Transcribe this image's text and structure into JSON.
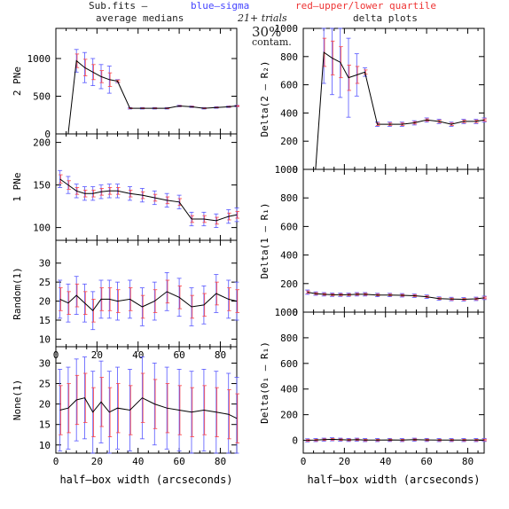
{
  "header": {
    "line1": {
      "prefix": "Sub.fits  –",
      "blue": "blue–sigma",
      "red": "red–upper/lower quartile"
    },
    "left_title": "average medians",
    "right_title": "delta plots",
    "trials": "21+ trials",
    "contam_pct": "30%",
    "contam": "contam."
  },
  "colors": {
    "median_line": "#000000",
    "sigma_bar": "#5555ff",
    "quartile_bar": "#ff4444",
    "axis": "#000000",
    "blue_text": "#4444ff",
    "red_text": "#ee3333"
  },
  "chart_data": [
    {
      "type": "line",
      "panel": "left-1",
      "ylabel": "2 PNe",
      "xlabel": "",
      "xlim": [
        0,
        88
      ],
      "ylim": [
        0,
        1400
      ],
      "xticks": [
        "0",
        "20",
        "40",
        "60",
        "80"
      ],
      "yticks": [
        "0",
        "500",
        "1000"
      ],
      "x": [
        2,
        6,
        10,
        14,
        18,
        22,
        26,
        30,
        36,
        42,
        48,
        54,
        60,
        66,
        72,
        78,
        84,
        88
      ],
      "values": [
        0,
        0,
        970,
        880,
        820,
        760,
        720,
        700,
        340,
        340,
        340,
        340,
        370,
        360,
        340,
        350,
        360,
        370
      ],
      "sigma": [
        0,
        0,
        150,
        200,
        180,
        160,
        180,
        20,
        10,
        10,
        10,
        10,
        10,
        10,
        10,
        10,
        10,
        10
      ],
      "quartile": [
        0,
        0,
        90,
        110,
        100,
        80,
        90,
        15,
        5,
        5,
        5,
        5,
        5,
        5,
        5,
        5,
        5,
        5
      ]
    },
    {
      "type": "line",
      "panel": "left-2",
      "ylabel": "1 PNe",
      "xlabel": "",
      "xlim": [
        0,
        88
      ],
      "ylim": [
        85,
        210
      ],
      "xticks": [
        "0",
        "20",
        "40",
        "60",
        "80"
      ],
      "yticks": [
        "100",
        "150",
        "200"
      ],
      "x": [
        2,
        6,
        10,
        14,
        18,
        22,
        26,
        30,
        36,
        42,
        48,
        54,
        60,
        66,
        72,
        78,
        84,
        88
      ],
      "values": [
        157,
        150,
        143,
        140,
        140,
        142,
        143,
        143,
        140,
        138,
        135,
        132,
        130,
        110,
        110,
        108,
        113,
        115
      ],
      "sigma": [
        10,
        10,
        8,
        8,
        8,
        8,
        8,
        8,
        8,
        8,
        8,
        8,
        8,
        8,
        8,
        8,
        8,
        8
      ],
      "quartile": [
        5,
        5,
        4,
        4,
        4,
        4,
        4,
        4,
        4,
        4,
        4,
        4,
        4,
        4,
        4,
        4,
        4,
        4
      ]
    },
    {
      "type": "line",
      "panel": "left-3",
      "ylabel": "Random(1)",
      "xlabel": "",
      "xlim": [
        0,
        88
      ],
      "ylim": [
        8,
        36
      ],
      "xticks": [
        "0",
        "20",
        "40",
        "60",
        "80"
      ],
      "yticks": [
        "10",
        "15",
        "20",
        "25",
        "30"
      ],
      "x": [
        2,
        6,
        10,
        14,
        18,
        22,
        26,
        30,
        36,
        42,
        48,
        54,
        60,
        66,
        72,
        78,
        84,
        88
      ],
      "values": [
        20.5,
        19.5,
        21.5,
        19.5,
        17.5,
        20.5,
        20.5,
        20,
        20.5,
        18.5,
        20,
        22.5,
        21,
        18.5,
        19,
        22,
        20.5,
        20
      ],
      "sigma": [
        5,
        5,
        5,
        5,
        5,
        5,
        5,
        5,
        5,
        5,
        5,
        5,
        5,
        5,
        5,
        5,
        5,
        5
      ],
      "quartile": [
        3,
        3,
        3,
        3,
        3,
        3,
        3,
        3,
        3,
        3,
        3,
        3,
        3,
        3,
        3,
        3,
        3,
        3
      ]
    },
    {
      "type": "line",
      "panel": "left-4",
      "ylabel": "None(1)",
      "xlabel": "half–box width (arcseconds)",
      "xlim": [
        0,
        88
      ],
      "ylim": [
        8,
        34
      ],
      "xticks": [
        "0",
        "20",
        "40",
        "60",
        "80"
      ],
      "yticks": [
        "10",
        "15",
        "20",
        "25",
        "30"
      ],
      "x": [
        2,
        6,
        10,
        14,
        18,
        22,
        26,
        30,
        36,
        42,
        48,
        54,
        60,
        66,
        72,
        78,
        84,
        88
      ],
      "values": [
        18.5,
        19,
        21,
        21.5,
        18,
        20.5,
        18,
        19,
        18.5,
        21.5,
        20,
        19,
        18.5,
        18,
        18.5,
        18,
        17.5,
        16.5
      ],
      "sigma": [
        10,
        10,
        10,
        10,
        10,
        10,
        10,
        10,
        10,
        10,
        10,
        10,
        10,
        10,
        10,
        10,
        10,
        10
      ],
      "quartile": [
        6,
        6,
        6,
        6,
        6,
        6,
        6,
        6,
        6,
        6,
        6,
        6,
        6,
        6,
        6,
        6,
        6,
        6
      ]
    },
    {
      "type": "line",
      "panel": "right-1",
      "ylabel": "Delta(2 – R₂)",
      "xlabel": "",
      "xlim": [
        0,
        88
      ],
      "ylim": [
        0,
        1000
      ],
      "xticks": [
        "0",
        "20",
        "40",
        "60",
        "80"
      ],
      "yticks": [
        "0",
        "200",
        "400",
        "600",
        "800",
        "1000"
      ],
      "x": [
        2,
        6,
        10,
        14,
        18,
        22,
        26,
        30,
        36,
        42,
        48,
        54,
        60,
        66,
        72,
        78,
        84,
        88
      ],
      "values": [
        0,
        0,
        830,
        790,
        760,
        650,
        670,
        690,
        320,
        320,
        320,
        330,
        350,
        340,
        320,
        340,
        340,
        350
      ],
      "sigma": [
        0,
        0,
        220,
        260,
        250,
        280,
        150,
        30,
        15,
        15,
        15,
        15,
        15,
        15,
        15,
        15,
        15,
        15
      ],
      "quartile": [
        0,
        0,
        100,
        120,
        110,
        90,
        60,
        15,
        8,
        8,
        8,
        8,
        8,
        8,
        8,
        8,
        8,
        8
      ]
    },
    {
      "type": "line",
      "panel": "right-2",
      "ylabel": "Delta(1 – R₁)",
      "xlabel": "",
      "xlim": [
        0,
        88
      ],
      "ylim": [
        0,
        1000
      ],
      "xticks": [
        "0",
        "20",
        "40",
        "60",
        "80"
      ],
      "yticks": [
        "0",
        "200",
        "400",
        "600",
        "800",
        "1000"
      ],
      "x": [
        2,
        6,
        10,
        14,
        18,
        22,
        26,
        30,
        36,
        42,
        48,
        54,
        60,
        66,
        72,
        78,
        84,
        88
      ],
      "values": [
        140,
        130,
        125,
        122,
        122,
        122,
        125,
        125,
        120,
        120,
        118,
        115,
        108,
        95,
        92,
        90,
        93,
        100
      ],
      "sigma": [
        15,
        12,
        12,
        12,
        12,
        12,
        12,
        12,
        12,
        12,
        12,
        12,
        12,
        12,
        12,
        12,
        12,
        12
      ],
      "quartile": [
        8,
        6,
        6,
        6,
        6,
        6,
        6,
        6,
        6,
        6,
        6,
        6,
        6,
        6,
        6,
        6,
        6,
        6
      ]
    },
    {
      "type": "line",
      "panel": "right-3",
      "ylabel": "Delta(0₁ – R₁)",
      "xlabel": "half–box width (arcseconds)",
      "xlim": [
        0,
        88
      ],
      "ylim": [
        -100,
        1000
      ],
      "xticks": [
        "0",
        "20",
        "40",
        "60",
        "80"
      ],
      "yticks": [
        "0",
        "200",
        "400",
        "600",
        "800",
        "1000"
      ],
      "x": [
        2,
        6,
        10,
        14,
        18,
        22,
        26,
        30,
        36,
        42,
        48,
        54,
        60,
        66,
        72,
        78,
        84,
        88
      ],
      "values": [
        0,
        2,
        5,
        8,
        5,
        3,
        5,
        2,
        2,
        3,
        2,
        5,
        3,
        2,
        2,
        2,
        2,
        3
      ],
      "sigma": [
        12,
        12,
        12,
        12,
        12,
        12,
        12,
        12,
        12,
        12,
        12,
        12,
        12,
        12,
        12,
        12,
        12,
        12
      ],
      "quartile": [
        6,
        6,
        6,
        6,
        6,
        6,
        6,
        6,
        6,
        6,
        6,
        6,
        6,
        6,
        6,
        6,
        6,
        6
      ]
    }
  ]
}
